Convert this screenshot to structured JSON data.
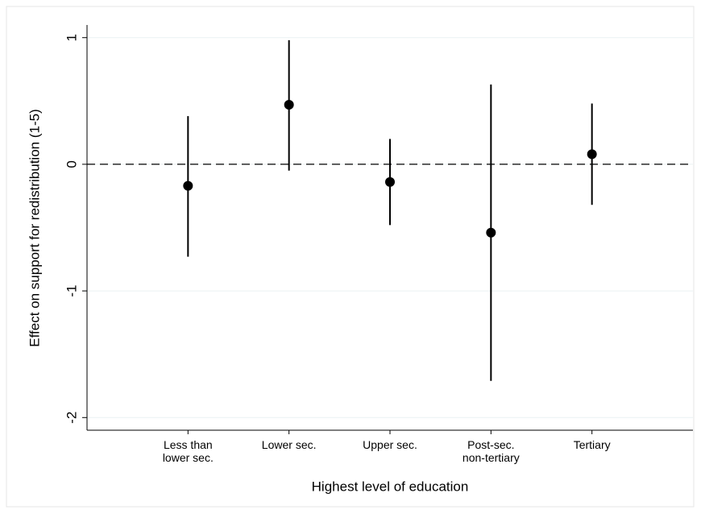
{
  "chart_data": {
    "type": "errorbar",
    "x_label": "Highest level of education",
    "y_label": "Effect on support for redistribution (1-5)",
    "categories": [
      "Less than\nlower sec.",
      "Lower sec.",
      "Upper sec.",
      "Post-sec.\nnon-tertiary",
      "Tertiary"
    ],
    "values": [
      -0.17,
      0.47,
      -0.14,
      -0.54,
      0.08
    ],
    "lower": [
      -0.73,
      -0.05,
      -0.48,
      -1.71,
      -0.32
    ],
    "upper": [
      0.38,
      0.98,
      0.2,
      0.63,
      0.48
    ],
    "color": "#000000",
    "ylim": [
      -2.1,
      1.1
    ],
    "yticks": [
      -2,
      -1,
      0,
      1
    ],
    "reference_line": 0,
    "grid": true
  }
}
